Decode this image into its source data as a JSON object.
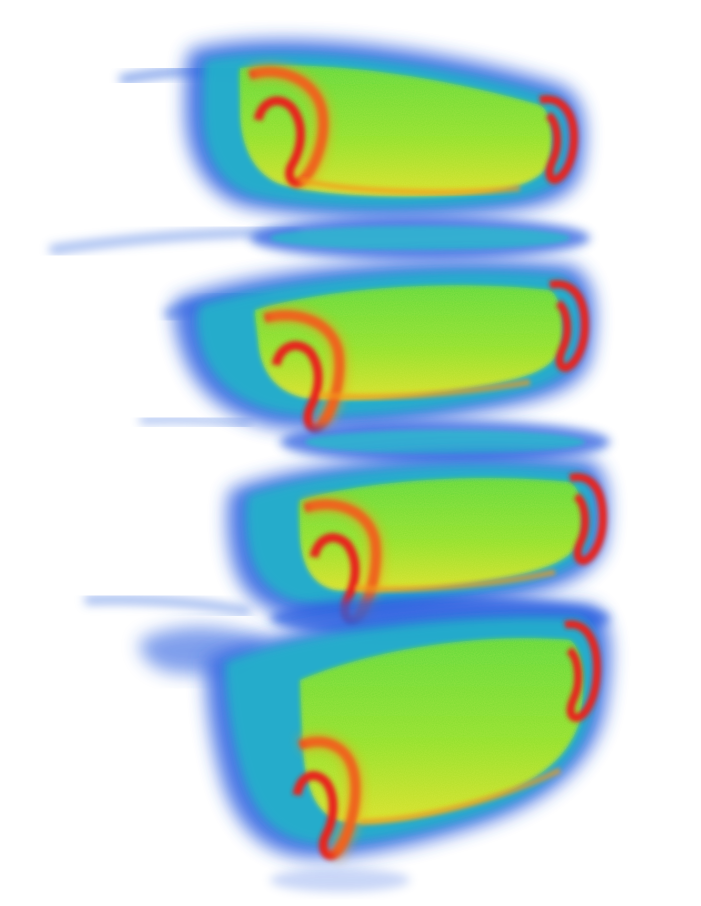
{
  "image": {
    "subject": "volume-rendered-vertebral-stack",
    "segments": 4,
    "colormap": [
      "#1b3fd6",
      "#1fa9d0",
      "#2fd07a",
      "#8be02a",
      "#e0e52a",
      "#f59a1a",
      "#e8231a"
    ]
  }
}
